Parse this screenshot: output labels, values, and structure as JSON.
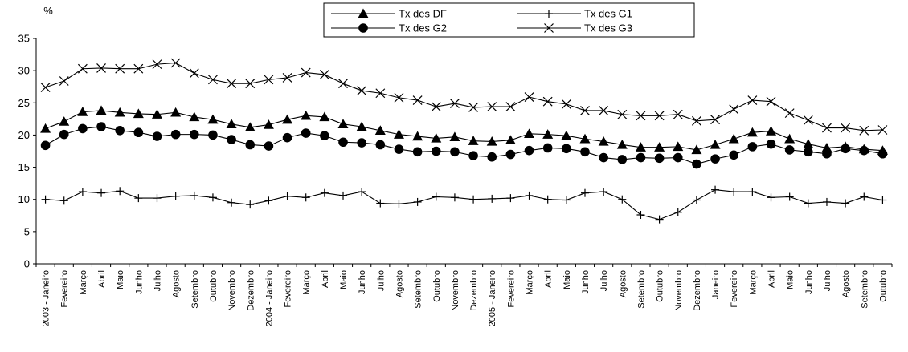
{
  "chart_data": {
    "type": "line",
    "ylabel": "%",
    "ylim": [
      0,
      35
    ],
    "yticks": [
      0,
      5,
      10,
      15,
      20,
      25,
      30,
      35
    ],
    "grid": false,
    "legend_position": "top-center",
    "categories": [
      "2003 - Janeiro",
      "Fevereiro",
      "Março",
      "Abril",
      "Maio",
      "Junho",
      "Julho",
      "Agosto",
      "Setembro",
      "Outubro",
      "Novembro",
      "Dezembro",
      "2004 - Janeiro",
      "Fevereiro",
      "Março",
      "Abril",
      "Maio",
      "Junho",
      "Julho",
      "Agosto",
      "Setembro",
      "Outubro",
      "Novembro",
      "Dezembro",
      "2005 - Janeiro",
      "Fevereiro",
      "Março",
      "Abril",
      "Maio",
      "Junho",
      "Julho",
      "Agosto",
      "Setembro",
      "Outubro",
      "Novembro",
      "Dezembro",
      "Janeiro",
      "Fevereiro",
      "Março",
      "Abril",
      "Maio",
      "Junho",
      "Julho",
      "Agosto",
      "Setembro",
      "Outubro"
    ],
    "series": [
      {
        "name": "Tx des DF",
        "marker": "triangle",
        "values": [
          21.0,
          22.1,
          23.6,
          23.8,
          23.5,
          23.3,
          23.2,
          23.5,
          22.8,
          22.4,
          21.7,
          21.2,
          21.6,
          22.4,
          23.0,
          22.8,
          21.7,
          21.3,
          20.7,
          20.1,
          19.8,
          19.5,
          19.7,
          19.1,
          19.0,
          19.2,
          20.2,
          20.1,
          19.9,
          19.4,
          19.0,
          18.5,
          18.1,
          18.1,
          18.2,
          17.7,
          18.5,
          19.4,
          20.4,
          20.6,
          19.4,
          18.6,
          18.0,
          18.2,
          17.8,
          17.6
        ]
      },
      {
        "name": "Tx des G1",
        "marker": "plus",
        "values": [
          10.0,
          9.8,
          11.2,
          11.0,
          11.3,
          10.2,
          10.2,
          10.5,
          10.6,
          10.3,
          9.5,
          9.2,
          9.8,
          10.5,
          10.3,
          11.0,
          10.6,
          11.2,
          9.4,
          9.3,
          9.6,
          10.4,
          10.3,
          10.0,
          10.1,
          10.2,
          10.6,
          10.0,
          9.9,
          11.0,
          11.2,
          10.0,
          7.6,
          6.9,
          8.0,
          9.9,
          11.5,
          11.2,
          11.2,
          10.3,
          10.4,
          9.4,
          9.6,
          9.4,
          10.4,
          9.9
        ]
      },
      {
        "name": "Tx des G2",
        "marker": "circle",
        "values": [
          18.4,
          20.1,
          21.0,
          21.3,
          20.7,
          20.4,
          19.8,
          20.1,
          20.1,
          20.0,
          19.3,
          18.5,
          18.3,
          19.6,
          20.3,
          19.9,
          18.9,
          18.8,
          18.5,
          17.8,
          17.4,
          17.5,
          17.4,
          16.8,
          16.6,
          17.0,
          17.6,
          18.0,
          17.9,
          17.4,
          16.5,
          16.2,
          16.5,
          16.4,
          16.5,
          15.5,
          16.3,
          16.9,
          18.2,
          18.6,
          17.7,
          17.4,
          17.1,
          17.9,
          17.6,
          17.1
        ]
      },
      {
        "name": "Tx des G3",
        "marker": "x",
        "values": [
          27.4,
          28.4,
          30.3,
          30.4,
          30.3,
          30.3,
          31.0,
          31.2,
          29.6,
          28.6,
          28.0,
          28.0,
          28.6,
          28.9,
          29.7,
          29.4,
          28.0,
          26.9,
          26.5,
          25.8,
          25.4,
          24.4,
          24.9,
          24.3,
          24.4,
          24.4,
          25.9,
          25.2,
          24.8,
          23.8,
          23.8,
          23.2,
          23.0,
          23.0,
          23.2,
          22.2,
          22.4,
          24.0,
          25.4,
          25.2,
          23.4,
          22.3,
          21.1,
          21.1,
          20.7,
          20.8
        ]
      }
    ]
  }
}
